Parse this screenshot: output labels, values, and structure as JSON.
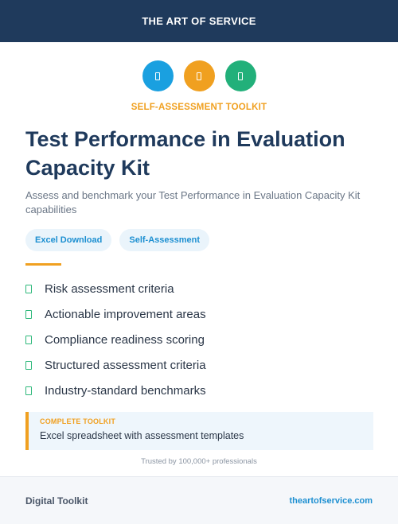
{
  "header": {
    "brand": "THE ART OF SERVICE"
  },
  "icons": [
    {
      "name": "spreadsheet-icon",
      "color": "#1aa0e0"
    },
    {
      "name": "document-icon",
      "color": "#f0a020"
    },
    {
      "name": "checklist-icon",
      "color": "#22b07a"
    }
  ],
  "eyebrow": "SELF-ASSESSMENT TOOLKIT",
  "title": "Test Performance in Evaluation Capacity Kit",
  "subtitle": "Assess and benchmark your Test Performance in Evaluation Capacity Kit capabilities",
  "tags": [
    "Excel Download",
    "Self-Assessment"
  ],
  "features": [
    "Risk assessment criteria",
    "Actionable improvement areas",
    "Compliance readiness scoring",
    "Structured assessment criteria",
    "Industry-standard benchmarks"
  ],
  "callout": {
    "label": "COMPLETE TOOLKIT",
    "text": "Excel spreadsheet with assessment templates"
  },
  "trust": "Trusted by 100,000+ professionals",
  "footer": {
    "left": "Digital Toolkit",
    "right": "theartofservice.com"
  }
}
